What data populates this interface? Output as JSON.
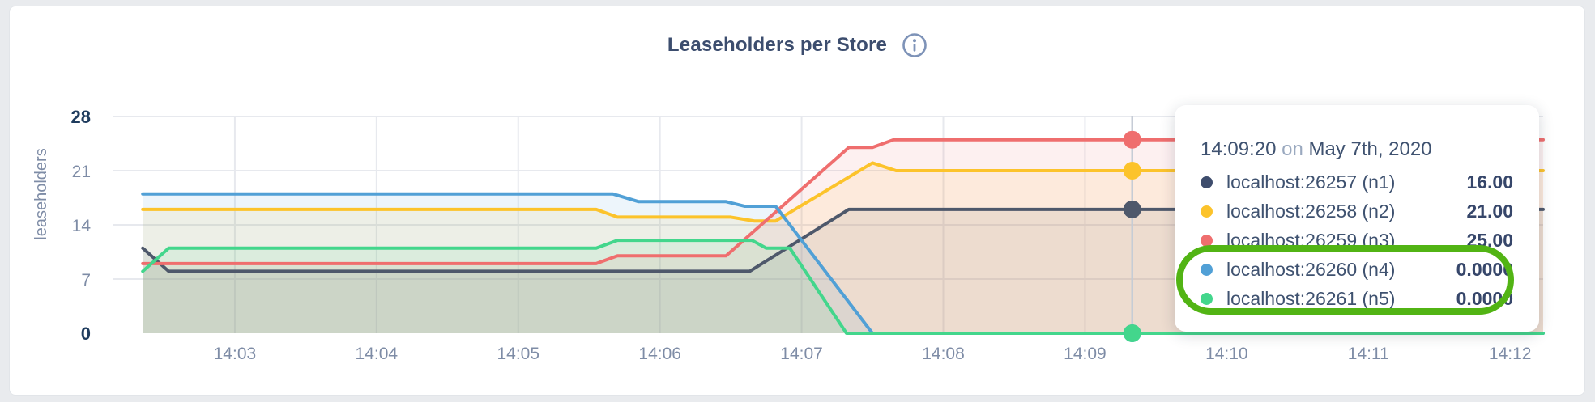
{
  "header": {
    "title": "Leaseholders per Store"
  },
  "chart_data": {
    "type": "area",
    "title": "Leaseholders per Store",
    "xlabel": "",
    "ylabel": "leaseholders",
    "ylim": [
      0,
      28
    ],
    "grid": true,
    "grid_color": "#e7e9ee",
    "crosshair_color": "#c6ccd5",
    "tick_color": "#7e8ca6",
    "tick_bold_color": "#1f3c5e",
    "fill_opacity": 0.1,
    "x_unit_note": "t = seconds after 14:02:00",
    "t_domain": [
      0,
      614
    ],
    "yticks": [
      {
        "v": 0,
        "label": "0",
        "bold": true
      },
      {
        "v": 7,
        "label": "7",
        "bold": false
      },
      {
        "v": 14,
        "label": "14",
        "bold": false
      },
      {
        "v": 21,
        "label": "21",
        "bold": false
      },
      {
        "v": 28,
        "label": "28",
        "bold": true
      }
    ],
    "xticks": [
      {
        "label": "14:03",
        "t": 60
      },
      {
        "label": "14:04",
        "t": 120
      },
      {
        "label": "14:05",
        "t": 180
      },
      {
        "label": "14:06",
        "t": 240
      },
      {
        "label": "14:07",
        "t": 300
      },
      {
        "label": "14:08",
        "t": 360
      },
      {
        "label": "14:09",
        "t": 420
      },
      {
        "label": "14:10",
        "t": 480
      },
      {
        "label": "14:11",
        "t": 540
      },
      {
        "label": "14:12",
        "t": 600
      }
    ],
    "series": [
      {
        "id": "n1",
        "name": "localhost:26257 (n1)",
        "color": "#4e586b",
        "points": [
          [
            21,
            11
          ],
          [
            32,
            8
          ],
          [
            278,
            8
          ],
          [
            320,
            16
          ],
          [
            614,
            16
          ]
        ]
      },
      {
        "id": "n2",
        "name": "localhost:26258 (n2)",
        "color": "#fcc32b",
        "points": [
          [
            21,
            16
          ],
          [
            213,
            16
          ],
          [
            222,
            15
          ],
          [
            270,
            15
          ],
          [
            280,
            14.5
          ],
          [
            289,
            14.5
          ],
          [
            330,
            22
          ],
          [
            340,
            21
          ],
          [
            614,
            21
          ]
        ]
      },
      {
        "id": "n3",
        "name": "localhost:26259 (n3)",
        "color": "#ef6e6e",
        "points": [
          [
            21,
            9
          ],
          [
            213,
            9
          ],
          [
            222,
            10
          ],
          [
            268,
            10
          ],
          [
            320,
            24
          ],
          [
            330,
            24
          ],
          [
            339,
            25
          ],
          [
            614,
            25
          ]
        ]
      },
      {
        "id": "n4",
        "name": "localhost:26260 (n4)",
        "color": "#51a0d6",
        "points": [
          [
            21,
            18
          ],
          [
            220,
            18
          ],
          [
            231,
            17
          ],
          [
            268,
            17
          ],
          [
            276,
            16.4
          ],
          [
            289,
            16.4
          ],
          [
            330,
            0
          ],
          [
            614,
            0
          ]
        ]
      },
      {
        "id": "n5",
        "name": "localhost:26261 (n5)",
        "color": "#43d68c",
        "points": [
          [
            21,
            8
          ],
          [
            32,
            11
          ],
          [
            213,
            11
          ],
          [
            222,
            12
          ],
          [
            279,
            12
          ],
          [
            285,
            11
          ],
          [
            295,
            11
          ],
          [
            319,
            0
          ],
          [
            614,
            0
          ]
        ]
      }
    ],
    "crosshair": {
      "t": 440,
      "time_label": "14:09:20",
      "values": [
        16,
        21,
        25,
        0,
        0
      ]
    }
  },
  "tooltip": {
    "time": "14:09:20",
    "preposition": "on",
    "date": "May 7th, 2020",
    "rows": [
      {
        "name": "localhost:26257 (n1)",
        "value": "16.00",
        "color": "#3e4d6d"
      },
      {
        "name": "localhost:26258 (n2)",
        "value": "21.00",
        "color": "#fcc32b"
      },
      {
        "name": "localhost:26259 (n3)",
        "value": "25.00",
        "color": "#ef6e6e"
      },
      {
        "name": "localhost:26260 (n4)",
        "value": "0.0000",
        "color": "#51a0d6"
      },
      {
        "name": "localhost:26261 (n5)",
        "value": "0.0000",
        "color": "#43d68c"
      }
    ]
  },
  "annotation": {
    "color": "#52b414"
  }
}
